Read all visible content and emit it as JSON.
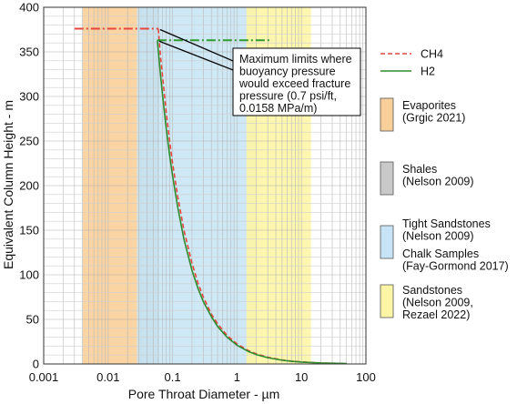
{
  "chart_data": {
    "type": "line",
    "title": "",
    "xlabel": "Pore Throat Diameter - µm",
    "ylabel": "Equivalent Column Height - m",
    "xscale": "log",
    "xlim": [
      0.001,
      100
    ],
    "ylim": [
      0,
      400
    ],
    "x_ticks": [
      {
        "value": 0.001,
        "label": "0.001"
      },
      {
        "value": 0.01,
        "label": "0.01"
      },
      {
        "value": 0.1,
        "label": "0.1"
      },
      {
        "value": 1,
        "label": "1"
      },
      {
        "value": 10,
        "label": "10"
      },
      {
        "value": 100,
        "label": "100"
      }
    ],
    "y_ticks": [
      {
        "value": 0,
        "label": "0"
      },
      {
        "value": 50,
        "label": "50"
      },
      {
        "value": 100,
        "label": "100"
      },
      {
        "value": 150,
        "label": "150"
      },
      {
        "value": 200,
        "label": "200"
      },
      {
        "value": 250,
        "label": "250"
      },
      {
        "value": 300,
        "label": "300"
      },
      {
        "value": 350,
        "label": "350"
      },
      {
        "value": 400,
        "label": "400"
      }
    ],
    "grid": true,
    "legend_position": "right",
    "series": [
      {
        "name": "CH4",
        "color": "#e8453c",
        "style": "dashed",
        "x": [
          0.06,
          0.065,
          0.07,
          0.08,
          0.09,
          0.1,
          0.12,
          0.15,
          0.2,
          0.25,
          0.3,
          0.4,
          0.5,
          0.7,
          1,
          1.5,
          2,
          3,
          5,
          7,
          10,
          20,
          50
        ],
        "y": [
          376,
          345,
          322,
          281,
          250,
          225,
          188,
          150,
          113,
          90,
          75,
          56,
          45,
          32,
          22.5,
          15,
          11.3,
          7.5,
          4.5,
          3.2,
          2.3,
          1.1,
          0.45
        ]
      },
      {
        "name": "H2",
        "color": "#2e8b2e",
        "style": "solid",
        "x": [
          0.058,
          0.062,
          0.065,
          0.07,
          0.08,
          0.09,
          0.1,
          0.12,
          0.15,
          0.2,
          0.25,
          0.3,
          0.4,
          0.5,
          0.7,
          1,
          1.5,
          2,
          3,
          5,
          7,
          10,
          20,
          50
        ],
        "y": [
          363,
          340,
          324,
          301,
          263,
          234,
          211,
          176,
          140,
          105,
          84,
          70,
          53,
          42,
          30,
          21,
          14,
          10.5,
          7,
          4.2,
          3,
          2.1,
          1.05,
          0.42
        ]
      }
    ],
    "limit_lines": [
      {
        "name": "CH4 maximum limit",
        "color": "#e8453c",
        "style": "dashdot",
        "x": [
          0.003,
          0.06
        ],
        "y": 376
      },
      {
        "name": "H2 maximum limit",
        "color": "#2e9a2e",
        "style": "dashdot",
        "x": [
          0.058,
          3.5
        ],
        "y": 363
      }
    ],
    "bands": [
      {
        "name": "Evaporites",
        "label_lines": [
          "Evaporites",
          "(Grgic 2021)"
        ],
        "color": "#f9cf99",
        "xmin": 0.004,
        "xmax": 0.032
      },
      {
        "name": "Shales",
        "label_lines": [
          "Shales",
          "(Nelson 2009)"
        ],
        "color": "#c9c9c9",
        "xmin": 0.03,
        "xmax": 0.062
      },
      {
        "name": "Tight Sandstones / Chalk Samples",
        "label_lines": [
          "Tight Sandstones",
          "(Nelson 2009)",
          "Chalk Samples",
          "(Fay-Gormond 2017)"
        ],
        "color": "#c6e4f5",
        "xmin": 0.028,
        "xmax": 2.0
      },
      {
        "name": "Sandstones",
        "label_lines": [
          "Sandstones",
          "(Nelson 2009,",
          "Rezael 2022)"
        ],
        "color": "#fdf5a6",
        "xmin": 1.4,
        "xmax": 14
      }
    ],
    "annotation": {
      "lines": [
        "Maximum limits where",
        "buoyancy pressure",
        "would exceed fracture",
        "pressure (0.7 psi/ft,",
        "0.0158 MPa/m)"
      ]
    }
  }
}
